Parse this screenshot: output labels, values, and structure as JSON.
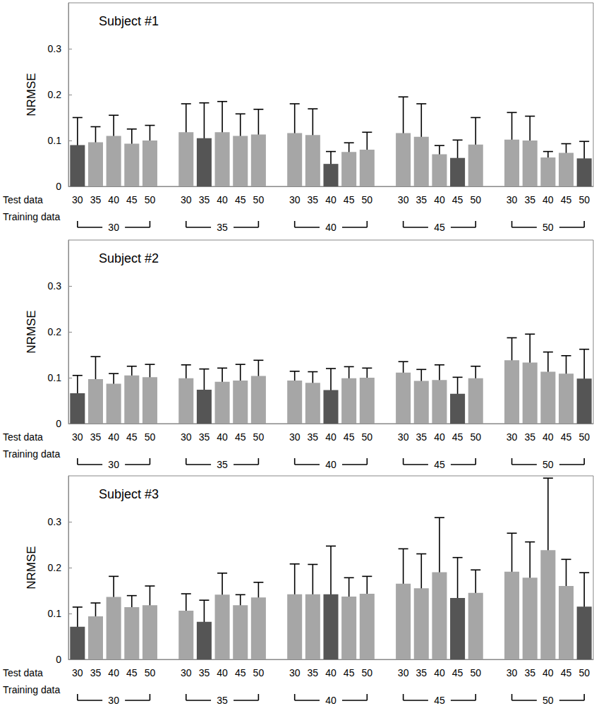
{
  "chart_data": [
    {
      "type": "bar",
      "title": "Subject #1",
      "y_label": "NRMSE",
      "x_label": "Test data",
      "group_label": "Training data",
      "categories": [
        "30",
        "35",
        "40",
        "45",
        "50",
        null,
        "30",
        "35",
        "40",
        "45",
        "50",
        null,
        "30",
        "35",
        "40",
        "45",
        "50",
        null,
        "30",
        "35",
        "40",
        "45",
        "50",
        null,
        "30",
        "35",
        "40",
        "45",
        "50"
      ],
      "groups": [
        "30",
        "35",
        "40",
        "45",
        "50"
      ],
      "values": [
        0.09,
        0.096,
        0.11,
        0.093,
        0.1,
        null,
        0.118,
        0.105,
        0.118,
        0.11,
        0.113,
        null,
        0.116,
        0.112,
        0.049,
        0.075,
        0.08,
        null,
        0.116,
        0.108,
        0.07,
        0.062,
        0.091,
        null,
        0.102,
        0.1,
        0.063,
        0.073,
        0.061
      ],
      "errors": [
        0.06,
        0.034,
        0.045,
        0.032,
        0.033,
        null,
        0.062,
        0.077,
        0.067,
        0.048,
        0.055,
        null,
        0.064,
        0.057,
        0.027,
        0.02,
        0.038,
        null,
        0.079,
        0.072,
        0.019,
        0.039,
        0.059,
        null,
        0.059,
        0.053,
        0.013,
        0.02,
        0.037
      ],
      "colors": [
        "#555555",
        "#a6a6a6",
        "#a6a6a6",
        "#a6a6a6",
        "#a6a6a6",
        null,
        "#a6a6a6",
        "#555555",
        "#a6a6a6",
        "#a6a6a6",
        "#a6a6a6",
        null,
        "#a6a6a6",
        "#a6a6a6",
        "#555555",
        "#a6a6a6",
        "#a6a6a6",
        null,
        "#a6a6a6",
        "#a6a6a6",
        "#a6a6a6",
        "#555555",
        "#a6a6a6",
        null,
        "#a6a6a6",
        "#a6a6a6",
        "#a6a6a6",
        "#a6a6a6",
        "#555555"
      ],
      "ylim": [
        0,
        0.4
      ],
      "yticks": [
        0,
        0.1,
        0.2,
        0.3
      ],
      "grid": false
    },
    {
      "type": "bar",
      "title": "Subject #2",
      "y_label": "NRMSE",
      "x_label": "Test data",
      "group_label": "Training data",
      "categories": [
        "30",
        "35",
        "40",
        "45",
        "50",
        null,
        "30",
        "35",
        "40",
        "45",
        "50",
        null,
        "30",
        "35",
        "40",
        "45",
        "50",
        null,
        "30",
        "35",
        "40",
        "45",
        "50",
        null,
        "30",
        "35",
        "40",
        "45",
        "50"
      ],
      "groups": [
        "30",
        "35",
        "40",
        "45",
        "50"
      ],
      "values": [
        0.066,
        0.097,
        0.087,
        0.105,
        0.101,
        null,
        0.099,
        0.074,
        0.091,
        0.094,
        0.104,
        null,
        0.094,
        0.089,
        0.073,
        0.099,
        0.1,
        null,
        0.111,
        0.093,
        0.095,
        0.065,
        0.099,
        null,
        0.138,
        0.133,
        0.113,
        0.109,
        0.098
      ],
      "errors": [
        0.039,
        0.049,
        0.022,
        0.02,
        0.028,
        null,
        0.029,
        0.045,
        0.03,
        0.035,
        0.034,
        null,
        0.02,
        0.024,
        0.047,
        0.025,
        0.021,
        null,
        0.024,
        0.025,
        0.033,
        0.036,
        0.026,
        null,
        0.049,
        0.062,
        0.043,
        0.039,
        0.064
      ],
      "colors": [
        "#555555",
        "#a6a6a6",
        "#a6a6a6",
        "#a6a6a6",
        "#a6a6a6",
        null,
        "#a6a6a6",
        "#555555",
        "#a6a6a6",
        "#a6a6a6",
        "#a6a6a6",
        null,
        "#a6a6a6",
        "#a6a6a6",
        "#555555",
        "#a6a6a6",
        "#a6a6a6",
        null,
        "#a6a6a6",
        "#a6a6a6",
        "#a6a6a6",
        "#555555",
        "#a6a6a6",
        null,
        "#a6a6a6",
        "#a6a6a6",
        "#a6a6a6",
        "#a6a6a6",
        "#555555"
      ],
      "ylim": [
        0,
        0.4
      ],
      "yticks": [
        0,
        0.1,
        0.2,
        0.3
      ],
      "grid": false
    },
    {
      "type": "bar",
      "title": "Subject #3",
      "y_label": "NRMSE",
      "x_label": "Test data",
      "group_label": "Training data",
      "categories": [
        "30",
        "35",
        "40",
        "45",
        "50",
        null,
        "30",
        "35",
        "40",
        "45",
        "50",
        null,
        "30",
        "35",
        "40",
        "45",
        "50",
        null,
        "30",
        "35",
        "40",
        "45",
        "50",
        null,
        "30",
        "35",
        "40",
        "45",
        "50"
      ],
      "groups": [
        "30",
        "35",
        "40",
        "45",
        "50"
      ],
      "values": [
        0.071,
        0.094,
        0.136,
        0.114,
        0.118,
        null,
        0.106,
        0.082,
        0.141,
        0.118,
        0.135,
        null,
        0.142,
        0.142,
        0.142,
        0.137,
        0.143,
        null,
        0.165,
        0.155,
        0.19,
        0.134,
        0.145,
        null,
        0.191,
        0.178,
        0.238,
        0.16,
        0.115
      ],
      "errors": [
        0.043,
        0.029,
        0.045,
        0.025,
        0.042,
        null,
        0.037,
        0.047,
        0.047,
        0.023,
        0.033,
        null,
        0.066,
        0.065,
        0.105,
        0.041,
        0.038,
        null,
        0.076,
        0.075,
        0.119,
        0.088,
        0.05,
        null,
        0.084,
        0.078,
        0.157,
        0.058,
        0.074
      ],
      "colors": [
        "#555555",
        "#a6a6a6",
        "#a6a6a6",
        "#a6a6a6",
        "#a6a6a6",
        null,
        "#a6a6a6",
        "#555555",
        "#a6a6a6",
        "#a6a6a6",
        "#a6a6a6",
        null,
        "#a6a6a6",
        "#a6a6a6",
        "#555555",
        "#a6a6a6",
        "#a6a6a6",
        null,
        "#a6a6a6",
        "#a6a6a6",
        "#a6a6a6",
        "#555555",
        "#a6a6a6",
        null,
        "#a6a6a6",
        "#a6a6a6",
        "#a6a6a6",
        "#a6a6a6",
        "#555555"
      ],
      "ylim": [
        0,
        0.4
      ],
      "yticks": [
        0,
        0.1,
        0.2,
        0.3
      ],
      "grid": false
    }
  ]
}
